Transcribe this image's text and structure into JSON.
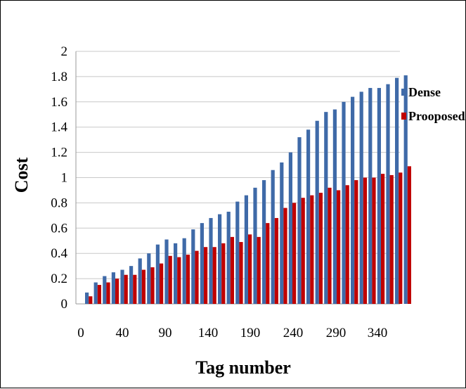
{
  "chart_data": {
    "type": "bar",
    "xlabel": "Tag number",
    "ylabel": "Cost",
    "ylim": [
      0,
      2
    ],
    "y_ticks": [
      "0",
      "0.2",
      "0.4",
      "0.6",
      "0.8",
      "1",
      "1.2",
      "1.4",
      "1.6",
      "1.8",
      "2"
    ],
    "x_ticks": [
      "0",
      "40",
      "90",
      "140",
      "190",
      "240",
      "290",
      "340"
    ],
    "grid": "horizontal",
    "legend_position": "right",
    "categories": [
      10,
      20,
      30,
      40,
      50,
      60,
      70,
      80,
      90,
      100,
      110,
      120,
      130,
      140,
      150,
      160,
      170,
      180,
      190,
      200,
      210,
      220,
      230,
      240,
      250,
      260,
      270,
      280,
      290,
      300,
      310,
      320,
      330,
      340,
      350,
      360
    ],
    "series": [
      {
        "name": "Dense",
        "color": "#3f6aa8",
        "values": [
          0.09,
          0.17,
          0.22,
          0.25,
          0.27,
          0.3,
          0.36,
          0.4,
          0.47,
          0.51,
          0.48,
          0.52,
          0.59,
          0.64,
          0.68,
          0.71,
          0.73,
          0.81,
          0.86,
          0.92,
          0.98,
          1.06,
          1.12,
          1.2,
          1.32,
          1.38,
          1.45,
          1.52,
          1.54,
          1.6,
          1.64,
          1.68,
          1.71,
          1.71,
          1.74,
          1.79
        ]
      },
      {
        "name": "Prooposed",
        "color": "#c00000",
        "values": [
          0.06,
          0.15,
          0.17,
          0.2,
          0.23,
          0.23,
          0.27,
          0.29,
          0.32,
          0.38,
          0.37,
          0.39,
          0.42,
          0.45,
          0.45,
          0.48,
          0.53,
          0.49,
          0.55,
          0.53,
          0.64,
          0.68,
          0.76,
          0.8,
          0.84,
          0.86,
          0.88,
          0.92,
          0.9,
          0.94,
          0.98,
          1.0,
          1.0,
          1.03,
          1.02,
          1.04
        ]
      }
    ],
    "extra_last": {
      "Dense": 1.81,
      "Prooposed": 1.09
    }
  }
}
